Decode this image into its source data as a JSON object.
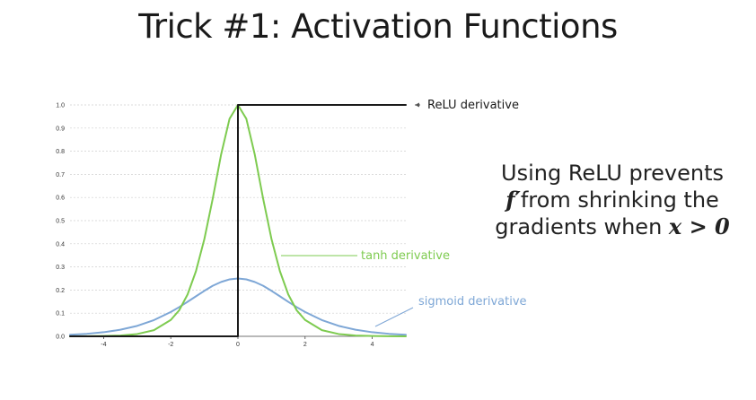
{
  "slide": {
    "title": "Trick #1: Activation Functions"
  },
  "note": {
    "line1": "Using ReLU prevents",
    "line2_math": "f′",
    "line2_text": "from shrinking the",
    "line3_text": "gradients when ",
    "line3_math": "x > 0"
  },
  "colors": {
    "relu": "#1a1a1a",
    "tanh": "#7ecb50",
    "sigmoid": "#7ea7d6",
    "grid": "#cfcfcf",
    "annotation_line": "#555555"
  },
  "chart_data": {
    "type": "line",
    "xlim": [
      -5,
      5
    ],
    "ylim": [
      0,
      1.0
    ],
    "x_ticks": [
      -4,
      -2,
      0,
      2,
      4
    ],
    "y_ticks": [
      0.0,
      0.1,
      0.2,
      0.3,
      0.4,
      0.5,
      0.6,
      0.7,
      0.8,
      0.9,
      1.0
    ],
    "y_tick_labels": [
      "0.0",
      "0.1",
      "0.2",
      "0.3",
      "0.4",
      "0.5",
      "0.6",
      "0.7",
      "0.8",
      "0.9",
      "1.0"
    ],
    "grid": "horizontal-dashed",
    "series": [
      {
        "name": "ReLU derivative",
        "color": "#1a1a1a",
        "x": [
          -5,
          0,
          0,
          5
        ],
        "y": [
          0,
          0,
          1,
          1
        ]
      },
      {
        "name": "tanh derivative",
        "color": "#7ecb50",
        "x": [
          -5.0,
          -4.5,
          -4.0,
          -3.5,
          -3.0,
          -2.5,
          -2.0,
          -1.75,
          -1.5,
          -1.25,
          -1.0,
          -0.75,
          -0.5,
          -0.25,
          0.0,
          0.25,
          0.5,
          0.75,
          1.0,
          1.25,
          1.5,
          1.75,
          2.0,
          2.5,
          3.0,
          3.5,
          4.0,
          4.5,
          5.0
        ],
        "y": [
          0.0002,
          0.0005,
          0.0013,
          0.0036,
          0.0099,
          0.0266,
          0.0707,
          0.1125,
          0.1807,
          0.2814,
          0.42,
          0.5951,
          0.7864,
          0.9401,
          1.0,
          0.9401,
          0.7864,
          0.5951,
          0.42,
          0.2814,
          0.1807,
          0.1125,
          0.0707,
          0.0266,
          0.0099,
          0.0036,
          0.0013,
          0.0005,
          0.0002
        ]
      },
      {
        "name": "sigmoid derivative",
        "color": "#7ea7d6",
        "x": [
          -5.0,
          -4.5,
          -4.0,
          -3.5,
          -3.0,
          -2.5,
          -2.0,
          -1.75,
          -1.5,
          -1.25,
          -1.0,
          -0.75,
          -0.5,
          -0.25,
          0.0,
          0.25,
          0.5,
          0.75,
          1.0,
          1.25,
          1.5,
          1.75,
          2.0,
          2.5,
          3.0,
          3.5,
          4.0,
          4.5,
          5.0
        ],
        "y": [
          0.0066,
          0.0109,
          0.0177,
          0.0285,
          0.0452,
          0.0701,
          0.105,
          0.1262,
          0.1491,
          0.1729,
          0.1966,
          0.2186,
          0.235,
          0.2461,
          0.25,
          0.2461,
          0.235,
          0.2186,
          0.1966,
          0.1729,
          0.1491,
          0.1262,
          0.105,
          0.0701,
          0.0452,
          0.0285,
          0.0177,
          0.0109,
          0.0066
        ]
      }
    ],
    "annotations": [
      {
        "text": "ReLU derivative",
        "series": "ReLU derivative",
        "color": "#1a1a1a",
        "point": [
          5.0,
          1.0
        ]
      },
      {
        "text": "tanh derivative",
        "series": "tanh derivative",
        "color": "#7ecb50",
        "point": [
          1.2,
          0.35
        ]
      },
      {
        "text": "sigmoid derivative",
        "series": "sigmoid derivative",
        "color": "#7ea7d6",
        "point": [
          3.95,
          0.04
        ]
      }
    ]
  }
}
